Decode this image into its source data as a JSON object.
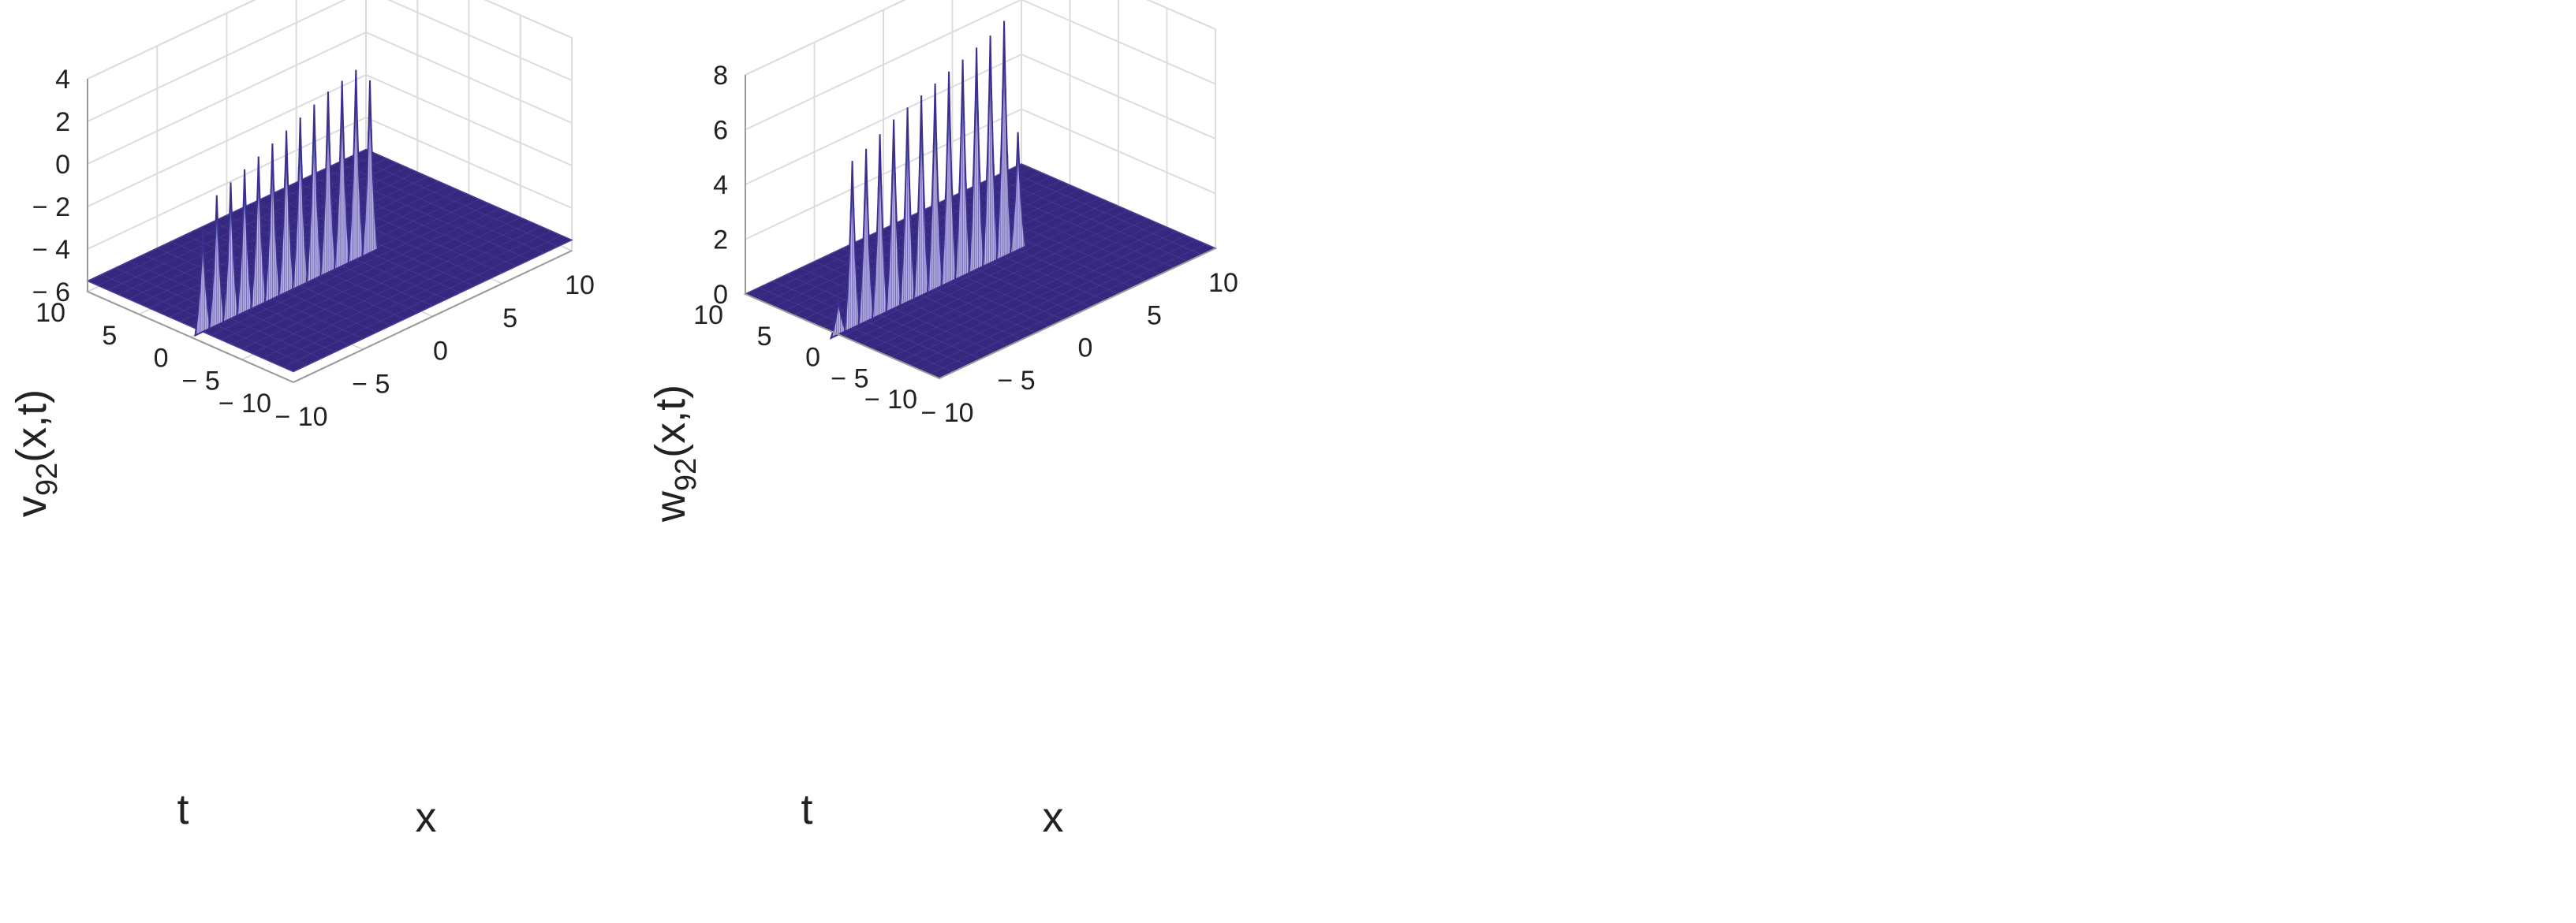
{
  "chart_data": [
    {
      "type": "surface",
      "id": "v92",
      "zlabel": {
        "main": "v",
        "sub": "92",
        "args": "(x,t)"
      },
      "xlabel": "x",
      "ylabel": "t",
      "xlim": [
        -10,
        10
      ],
      "ylim": [
        -10,
        10
      ],
      "zlim": [
        -6,
        4
      ],
      "xticks": [
        {
          "v": -10,
          "label": "− 10"
        },
        {
          "v": -5,
          "label": "− 5"
        },
        {
          "v": 0,
          "label": "0"
        },
        {
          "v": 5,
          "label": "5"
        },
        {
          "v": 10,
          "label": "10"
        }
      ],
      "yticks": [
        {
          "v": -10,
          "label": "− 10"
        },
        {
          "v": -5,
          "label": "− 5"
        },
        {
          "v": 0,
          "label": "0"
        },
        {
          "v": 5,
          "label": "5"
        },
        {
          "v": 10,
          "label": "10"
        }
      ],
      "zticks": [
        {
          "v": -6,
          "label": "− 6"
        },
        {
          "v": -4,
          "label": "− 4"
        },
        {
          "v": -2,
          "label": "− 2"
        },
        {
          "v": 0,
          "label": "0"
        },
        {
          "v": 2,
          "label": "2"
        },
        {
          "v": 4,
          "label": "4"
        }
      ],
      "base_level": -5.5,
      "ridge_t": -1.2,
      "peaks": [
        {
          "x": -10,
          "z": -0.8
        },
        {
          "x": -9,
          "z": 0.6
        },
        {
          "x": -8,
          "z": 0.9
        },
        {
          "x": -7,
          "z": 1.2
        },
        {
          "x": -6,
          "z": 1.5
        },
        {
          "x": -5,
          "z": 1.8
        },
        {
          "x": -4,
          "z": 2.1
        },
        {
          "x": -3,
          "z": 2.4
        },
        {
          "x": -2,
          "z": 2.7
        },
        {
          "x": -1,
          "z": 3.0
        },
        {
          "x": 0,
          "z": 3.2
        },
        {
          "x": 1,
          "z": 3.4
        },
        {
          "x": 2,
          "z": 2.6
        }
      ]
    },
    {
      "type": "surface",
      "id": "w92",
      "zlabel": {
        "main": "w",
        "sub": "92",
        "args": "(x,t)"
      },
      "xlabel": "x",
      "ylabel": "t",
      "xlim": [
        -10,
        10
      ],
      "ylim": [
        -10,
        10
      ],
      "zlim": [
        0,
        8
      ],
      "xticks": [
        {
          "v": -10,
          "label": "− 10"
        },
        {
          "v": -5,
          "label": "− 5"
        },
        {
          "v": 0,
          "label": "0"
        },
        {
          "v": 5,
          "label": "5"
        },
        {
          "v": 10,
          "label": "10"
        }
      ],
      "yticks": [
        {
          "v": -10,
          "label": "− 10"
        },
        {
          "v": -5,
          "label": "− 5"
        },
        {
          "v": 0,
          "label": "0"
        },
        {
          "v": 5,
          "label": "5"
        },
        {
          "v": 10,
          "label": "10"
        }
      ],
      "zticks": [
        {
          "v": 0,
          "label": "0"
        },
        {
          "v": 2,
          "label": "2"
        },
        {
          "v": 4,
          "label": "4"
        },
        {
          "v": 6,
          "label": "6"
        },
        {
          "v": 8,
          "label": "8"
        }
      ],
      "base_level": 0,
      "ridge_t": 0.4,
      "peaks": [
        {
          "x": -10,
          "z": 1.3
        },
        {
          "x": -9,
          "z": 6.1
        },
        {
          "x": -8,
          "z": 6.3
        },
        {
          "x": -7,
          "z": 6.6
        },
        {
          "x": -6,
          "z": 6.9
        },
        {
          "x": -5,
          "z": 7.1
        },
        {
          "x": -4,
          "z": 7.3
        },
        {
          "x": -3,
          "z": 7.5
        },
        {
          "x": -2,
          "z": 7.7
        },
        {
          "x": -1,
          "z": 7.9
        },
        {
          "x": 0,
          "z": 8.1
        },
        {
          "x": 1,
          "z": 8.3
        },
        {
          "x": 2,
          "z": 8.6
        },
        {
          "x": 3,
          "z": 4.3
        }
      ]
    }
  ],
  "colors": {
    "base": "#35287e",
    "base_mesh": "#4a3f9a",
    "peak_top": "#f2e01a",
    "peak_mid": "#28a6d9",
    "peak_fill": "#b9b4e6",
    "peak_line": "#3d2f8f",
    "grid": "#dcdcdc",
    "axis": "#9a9a9a"
  }
}
